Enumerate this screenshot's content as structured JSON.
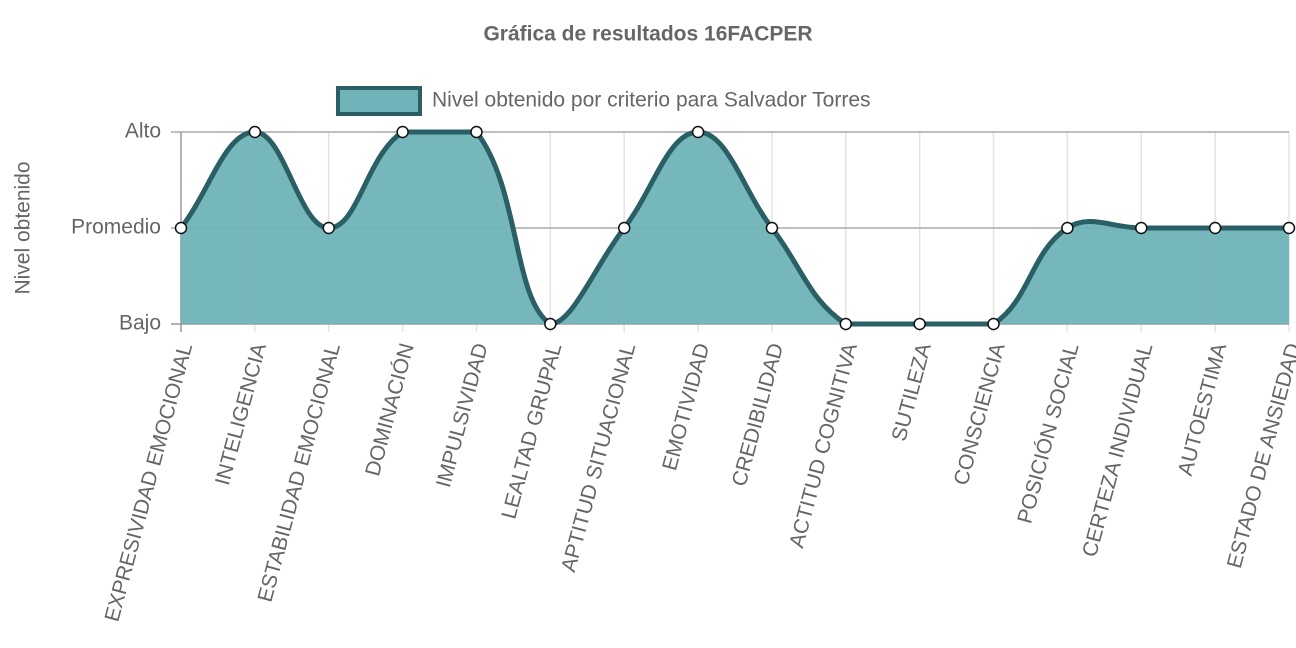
{
  "chart_data": {
    "type": "line",
    "title": "Gráfica de resultados 16FACPER",
    "y_label": "Nivel obtenido",
    "categories": [
      "EXPRESIVIDAD EMOCIONAL",
      "INTELIGENCIA",
      "ESTABILIDAD EMOCIONAL",
      "DOMINACIÓN",
      "IMPULSIVIDAD",
      "LEALTAD GRUPAL",
      "APTITUD SITUACIONAL",
      "EMOTIVIDAD",
      "CREDIBILIDAD",
      "ACTITUD COGNITIVA",
      "SUTILEZA",
      "CONSCIENCIA",
      "POSICIÓN SOCIAL",
      "CERTEZA INDIVIDUAL",
      "AUTOESTIMA",
      "ESTADO DE ANSIEDAD"
    ],
    "series": [
      {
        "name": "Nivel obtenido por criterio para Salvador Torres",
        "color": "#2a5f66",
        "fill": "#6fb3b8",
        "values": [
          2,
          3,
          2,
          3,
          3,
          1,
          2,
          3,
          2,
          1,
          1,
          1,
          2,
          2,
          2,
          2
        ]
      }
    ],
    "ylim": [
      1,
      3
    ],
    "yticks": [
      {
        "value": 1,
        "label": "Bajo"
      },
      {
        "value": 2,
        "label": "Promedio"
      },
      {
        "value": 3,
        "label": "Alto"
      }
    ],
    "grid": true,
    "legend": "top"
  }
}
